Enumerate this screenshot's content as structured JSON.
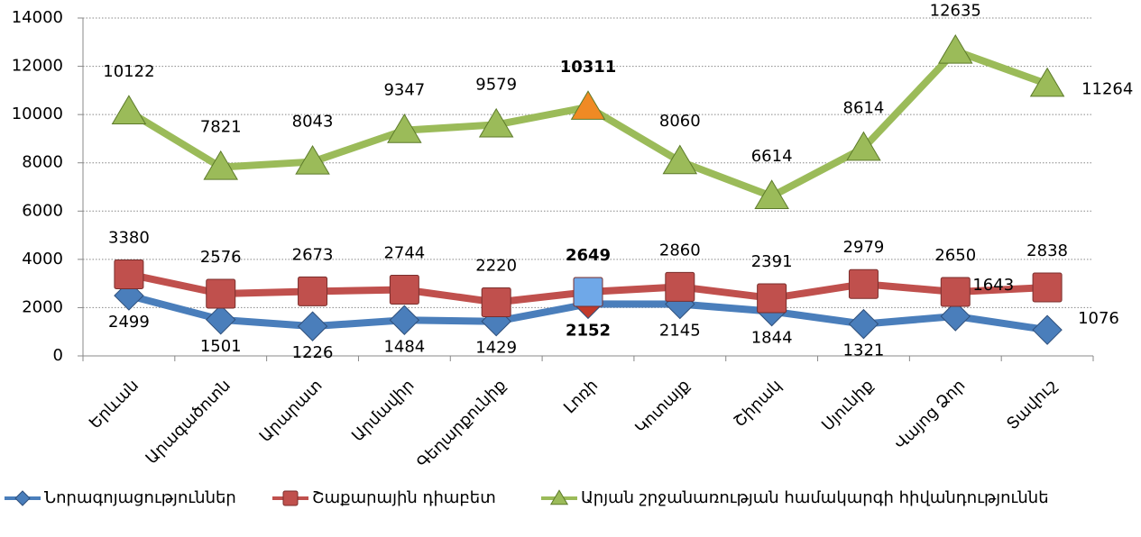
{
  "chart_data": {
    "type": "line",
    "categories": [
      "Երևան",
      "Արագածոտն",
      "Արարատ",
      "Արմավիր",
      "Գեղարքունիք",
      "Լոռի",
      "Կոտայք",
      "Շիրակ",
      "Սյունիք",
      "Վայոց Ձոր",
      "Տավուշ"
    ],
    "series": [
      {
        "name": "Նորագոյացություններ",
        "color": "#4a7ebb",
        "marker": "diamond",
        "highlight_color": "#c0392b",
        "values": [
          2499,
          1501,
          1226,
          1484,
          1429,
          2152,
          2145,
          1844,
          1321,
          1643,
          1076
        ]
      },
      {
        "name": "Շաքարային դիաբետ",
        "color": "#c0504d",
        "marker": "square",
        "highlight_color": "#6fa8e8",
        "values": [
          3380,
          2576,
          2673,
          2744,
          2220,
          2649,
          2860,
          2391,
          2979,
          2650,
          2838
        ]
      },
      {
        "name": "Արյան շրջանառության համակարգի հիվանդություննե",
        "color": "#9bbb59",
        "marker": "triangle",
        "highlight_color": "#f08a24",
        "values": [
          10122,
          7821,
          8043,
          9347,
          9579,
          10311,
          8060,
          6614,
          8614,
          12635,
          11264
        ]
      }
    ],
    "highlight_index": 5,
    "ylim": [
      0,
      14000
    ],
    "yticks": [
      0,
      2000,
      4000,
      6000,
      8000,
      10000,
      12000,
      14000
    ],
    "grid": true,
    "legend": "bottom"
  }
}
